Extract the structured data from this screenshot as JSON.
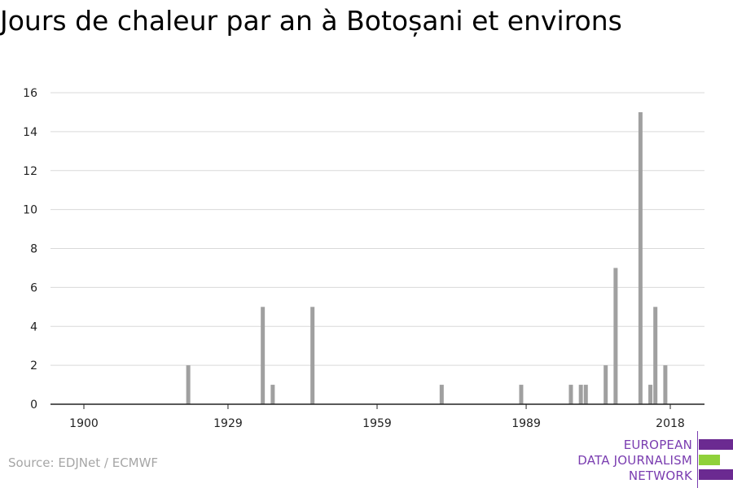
{
  "title": "Jours de chaleur par an à Botoșani et environs",
  "source": "Source: EDJNet / ECMWF",
  "logo": {
    "lines": [
      "EUROPEAN",
      "DATA JOURNALISM",
      "NETWORK"
    ]
  },
  "colors": {
    "bar": "#a0a0a0",
    "grid": "#d9d9d9",
    "axis": "#222222",
    "logo_purple": "#6b2a91",
    "logo_green": "#8fd13a"
  },
  "chart_data": {
    "type": "bar",
    "title": "Jours de chaleur par an à Botoșani et environs",
    "xlabel": "",
    "ylabel": "",
    "xlim": [
      1900,
      2020
    ],
    "ylim": [
      0,
      16
    ],
    "x_ticks": [
      1900,
      1929,
      1959,
      1989,
      2018
    ],
    "y_ticks": [
      0,
      2,
      4,
      6,
      8,
      10,
      12,
      14,
      16
    ],
    "grid": true,
    "legend": "none",
    "years": [
      1921,
      1936,
      1938,
      1946,
      1972,
      1988,
      1998,
      2000,
      2001,
      2005,
      2007,
      2012,
      2014,
      2015,
      2017
    ],
    "values": [
      2,
      5,
      1,
      5,
      1,
      1,
      1,
      1,
      1,
      2,
      7,
      15,
      1,
      5,
      2
    ]
  }
}
